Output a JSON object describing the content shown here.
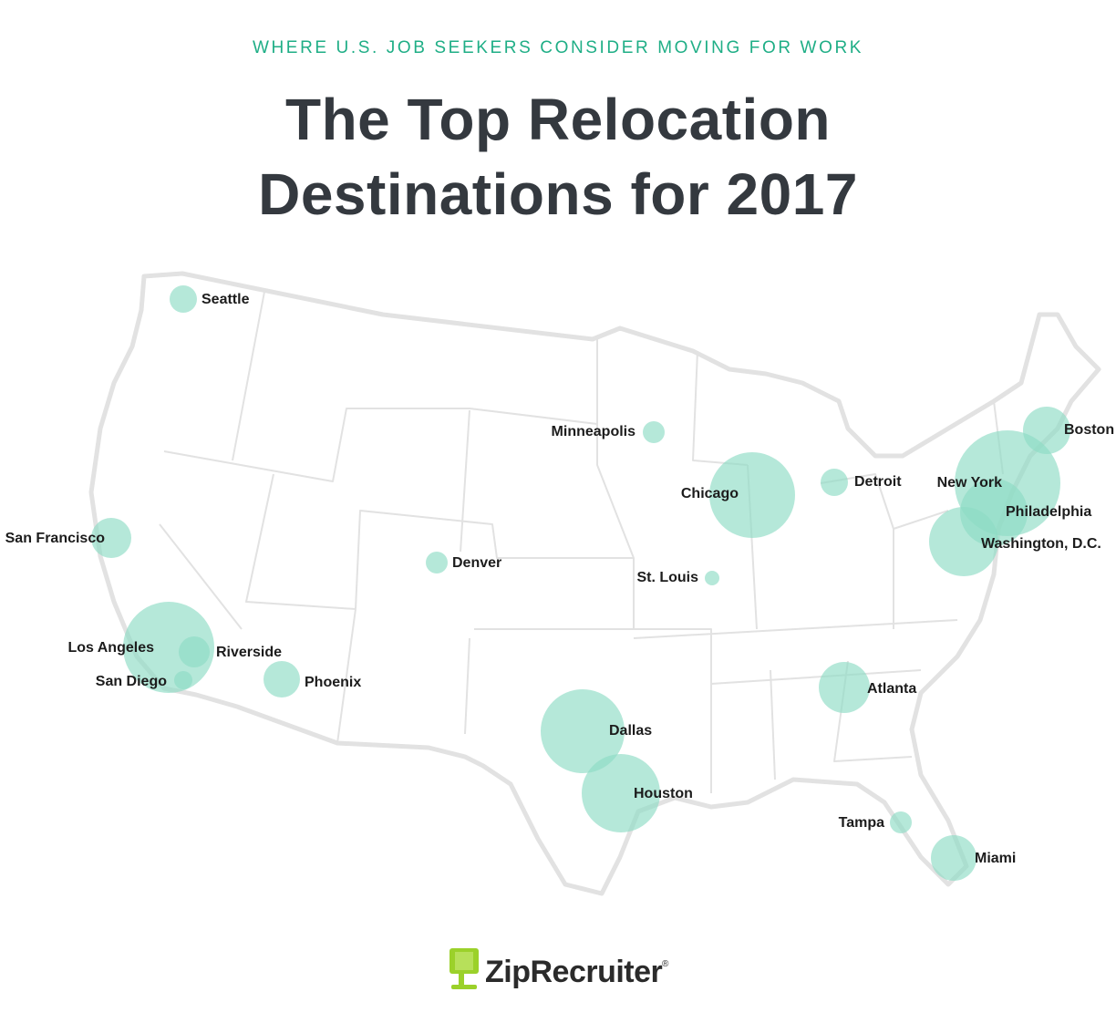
{
  "header": {
    "kicker": "WHERE U.S. JOB SEEKERS CONSIDER MOVING FOR WORK",
    "title": [
      "The Top Relocation",
      "Destinations for 2017"
    ]
  },
  "cities": [
    "Seattle",
    "Minneapolis",
    "Boston",
    "New York",
    "Detroit",
    "Chicago",
    "Philadelphia",
    "Washington, D.C.",
    "San Francisco",
    "Denver",
    "St. Louis",
    "Los Angeles",
    "Riverside",
    "San Diego",
    "Phoenix",
    "Atlanta",
    "Dallas",
    "Houston",
    "Tampa",
    "Miami"
  ],
  "logo": {
    "name": "ZipRecruiter",
    "mark": "®"
  }
}
